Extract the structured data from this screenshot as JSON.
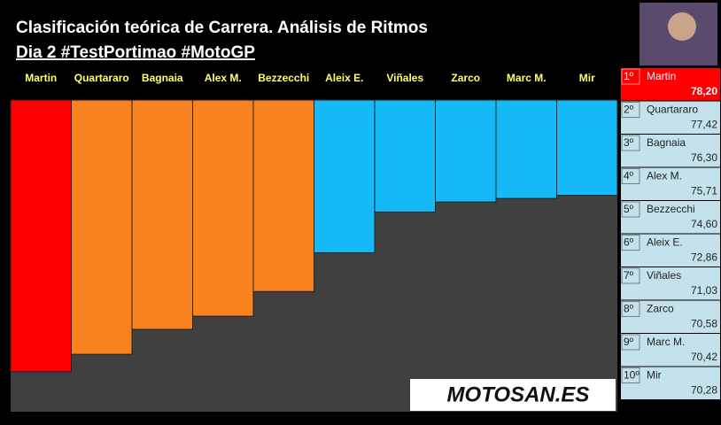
{
  "chart_data": {
    "type": "bar",
    "title": "Clasificación teórica de Carrera. Análisis de Ritmos",
    "subtitle": "Dia 2 #TestPortimao #MotoGP",
    "categories": [
      "Martin",
      "Quartararo",
      "Bagnaia",
      "Alex M.",
      "Bezzecchi",
      "Aleix E.",
      "Viñales",
      "Zarco",
      "Marc M.",
      "Mir"
    ],
    "values": [
      78.2,
      77.42,
      76.3,
      75.71,
      74.6,
      72.86,
      71.03,
      70.58,
      70.42,
      70.28
    ],
    "value_labels": [
      "78,20",
      "77,42",
      "76,30",
      "75,71",
      "74,60",
      "72,86",
      "71,03",
      "70,58",
      "70,42",
      "70,28"
    ],
    "ranks": [
      "1º",
      "2º",
      "3º",
      "4º",
      "5º",
      "6º",
      "7º",
      "8º",
      "9º",
      "10º"
    ],
    "colors": [
      "#ff0000",
      "#f7821e",
      "#f7821e",
      "#f7821e",
      "#f7821e",
      "#14b9f5",
      "#14b9f5",
      "#14b9f5",
      "#14b9f5",
      "#14b9f5"
    ],
    "ylim": [
      66,
      80
    ],
    "y_inverted": true,
    "watermark": "MOTOSAN.ES"
  }
}
